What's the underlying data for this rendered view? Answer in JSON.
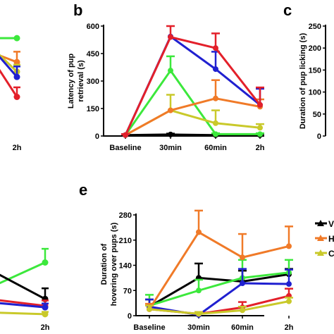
{
  "panels": [
    {
      "id": "a",
      "letter": ""
    },
    {
      "id": "b",
      "letter": "b"
    },
    {
      "id": "c",
      "letter": "c"
    },
    {
      "id": "d",
      "letter": ""
    },
    {
      "id": "e",
      "letter": "e"
    }
  ],
  "colors": {
    "black": "#000000",
    "red": "#e3202a",
    "blue": "#2020d0",
    "green": "#3ce83c",
    "orange": "#f07a28",
    "olive": "#c9c92a"
  },
  "legend": {
    "entries": [
      {
        "label": "V",
        "color": "#000000"
      },
      {
        "label": "H",
        "color": "#f07a28"
      },
      {
        "label": "C",
        "color": "#c9c92a"
      }
    ]
  },
  "chart_data": [
    {
      "panel": "a",
      "type": "line",
      "title": "",
      "xlabel": "",
      "ylabel": "",
      "categories": [
        "2h"
      ],
      "ylim": [
        0,
        600
      ],
      "series": [
        {
          "color": "#3ce83c",
          "values": [
            563
          ],
          "err": [
            0
          ]
        },
        {
          "color": "#f07a28",
          "values": [
            425
          ],
          "err": [
            60
          ]
        },
        {
          "color": "#c9c92a",
          "values": [
            370
          ],
          "err": [
            40
          ]
        },
        {
          "color": "#2020d0",
          "values": [
            340
          ],
          "err": [
            60
          ]
        },
        {
          "color": "#e3202a",
          "values": [
            225
          ],
          "err": [
            55
          ]
        }
      ]
    },
    {
      "panel": "b",
      "type": "line",
      "title": "",
      "xlabel": "",
      "ylabel": "Latency of pup retrieval (s)",
      "categories": [
        "Baseline",
        "30min",
        "60min",
        "2h"
      ],
      "ylim": [
        0,
        600
      ],
      "yticks": [
        0,
        150,
        300,
        450,
        600
      ],
      "series": [
        {
          "color": "#000000",
          "values": [
            5,
            8,
            5,
            5
          ],
          "err": [
            5,
            5,
            5,
            5
          ]
        },
        {
          "color": "#3ce83c",
          "values": [
            5,
            357,
            10,
            10
          ],
          "err": [
            5,
            78,
            5,
            5
          ]
        },
        {
          "color": "#c9c92a",
          "values": [
            5,
            140,
            70,
            45
          ],
          "err": [
            5,
            85,
            70,
            20
          ]
        },
        {
          "color": "#f07a28",
          "values": [
            5,
            140,
            205,
            160
          ],
          "err": [
            5,
            0,
            100,
            40
          ]
        },
        {
          "color": "#2020d0",
          "values": [
            5,
            543,
            365,
            170
          ],
          "err": [
            5,
            0,
            95,
            88
          ]
        },
        {
          "color": "#e3202a",
          "values": [
            5,
            540,
            480,
            170
          ],
          "err": [
            5,
            60,
            80,
            95
          ]
        }
      ]
    },
    {
      "panel": "c",
      "type": "line",
      "title": "",
      "xlabel": "",
      "ylabel": "Duration of pup licking (s)",
      "categories": [],
      "ylim": [
        0,
        250
      ],
      "yticks": [
        0,
        50,
        100,
        150,
        200,
        250
      ],
      "series": []
    },
    {
      "panel": "d",
      "type": "line",
      "title": "",
      "xlabel": "",
      "ylabel": "",
      "categories": [
        "2h"
      ],
      "ylim": [
        0,
        140
      ],
      "series": [
        {
          "color": "#3ce83c",
          "values": [
            70
          ],
          "err": [
            18
          ]
        },
        {
          "color": "#000000",
          "values": [
            22
          ],
          "err": [
            14
          ]
        },
        {
          "color": "#e3202a",
          "values": [
            13
          ],
          "err": [
            7
          ]
        },
        {
          "color": "#2020d0",
          "values": [
            11
          ],
          "err": [
            5
          ]
        },
        {
          "color": "#c9c92a",
          "values": [
            2
          ],
          "err": [
            3
          ]
        }
      ]
    },
    {
      "panel": "e",
      "type": "line",
      "title": "",
      "xlabel": "",
      "ylabel": "Duration of hovering over pups (s)",
      "categories": [
        "Baseline",
        "30min",
        "60min",
        "2h"
      ],
      "ylim": [
        0,
        280
      ],
      "yticks": [
        0,
        70,
        140,
        210,
        280
      ],
      "series": [
        {
          "color": "#000000",
          "values": [
            25,
            105,
            95,
            115
          ],
          "err": [
            20,
            40,
            30,
            15
          ]
        },
        {
          "color": "#3ce83c",
          "values": [
            28,
            70,
            105,
            120
          ],
          "err": [
            30,
            30,
            50,
            35
          ]
        },
        {
          "color": "#2020d0",
          "values": [
            25,
            2,
            90,
            88
          ],
          "err": [
            20,
            5,
            40,
            40
          ]
        },
        {
          "color": "#f07a28",
          "values": [
            18,
            232,
            162,
            193
          ],
          "err": [
            15,
            60,
            65,
            55
          ]
        },
        {
          "color": "#e3202a",
          "values": [
            18,
            5,
            23,
            55
          ],
          "err": [
            10,
            5,
            15,
            20
          ]
        },
        {
          "color": "#c9c92a",
          "values": [
            18,
            5,
            15,
            40
          ],
          "err": [
            10,
            5,
            10,
            10
          ]
        }
      ]
    }
  ]
}
